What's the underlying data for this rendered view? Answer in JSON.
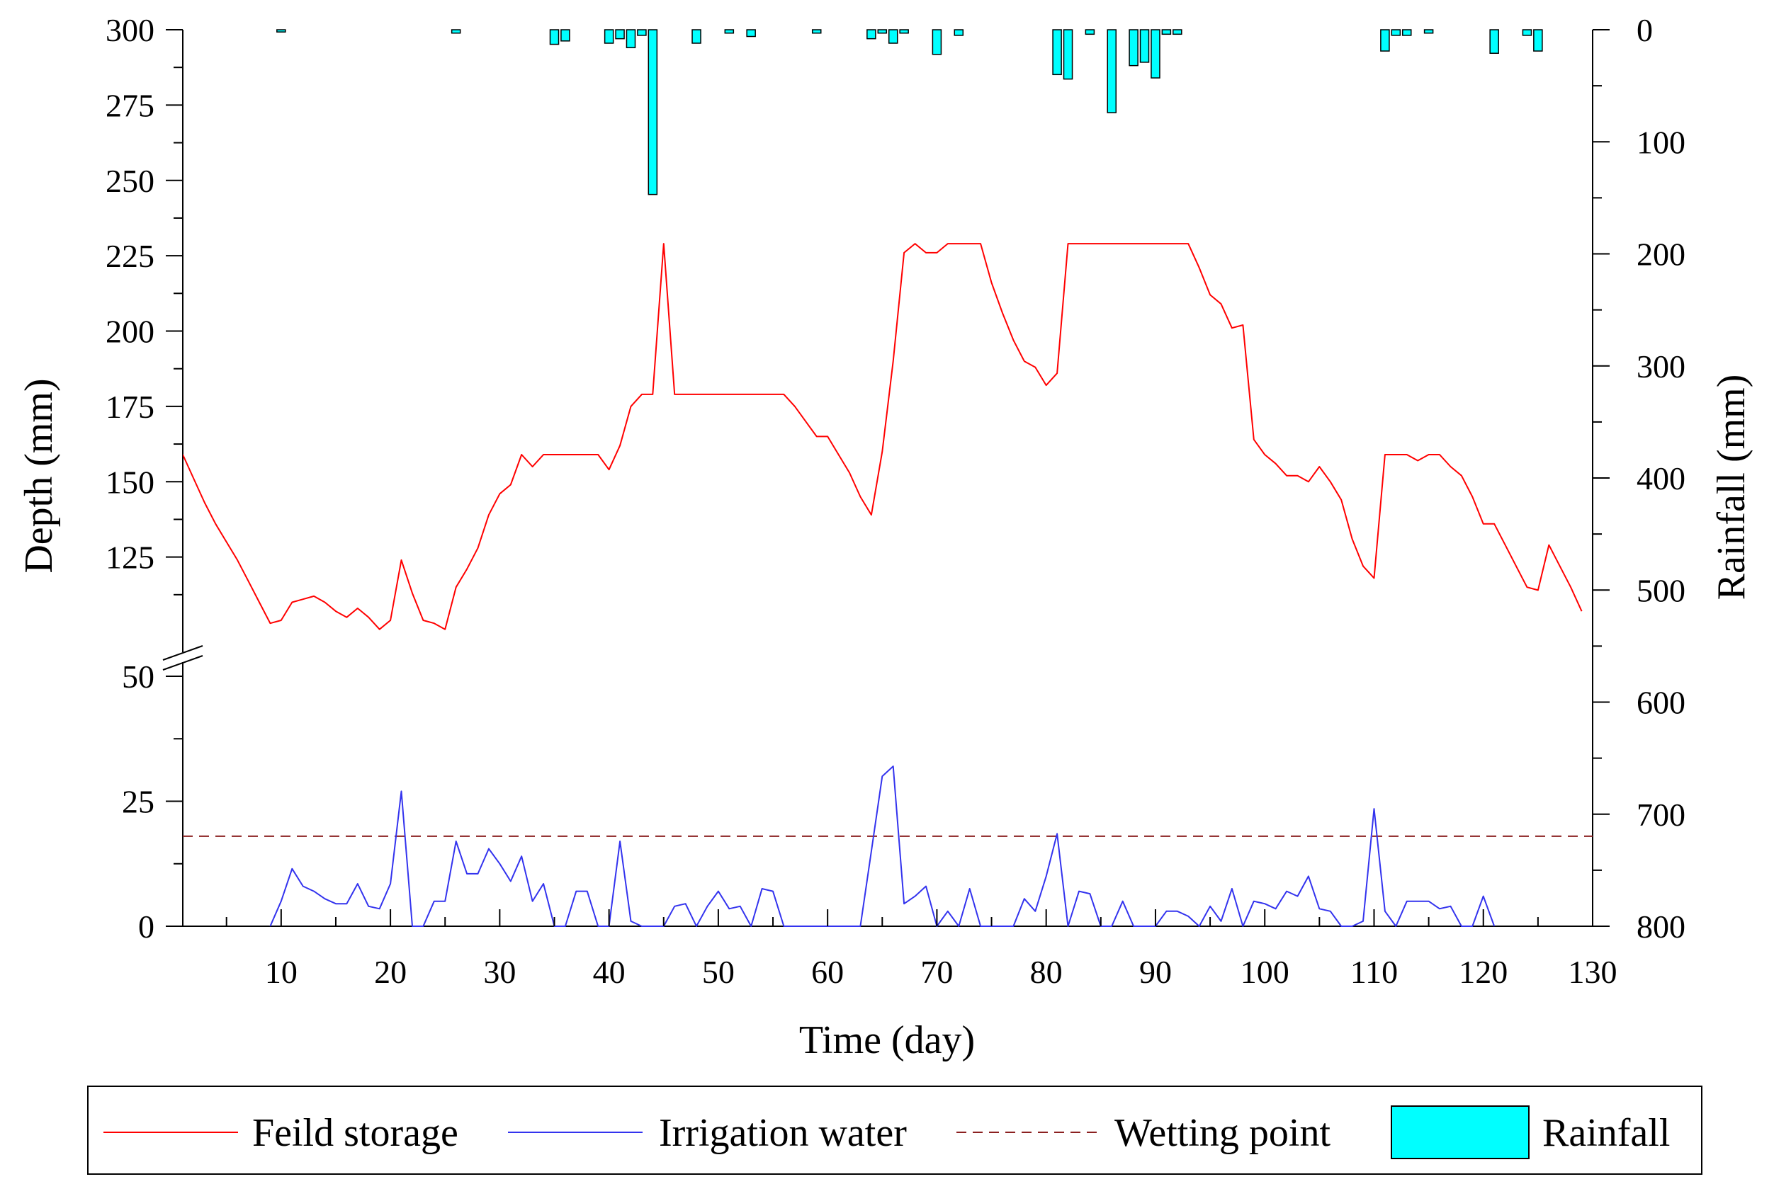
{
  "chart_data": {
    "type": "line",
    "xlabel": "Time (day)",
    "ylabel_left": "Depth (mm)",
    "ylabel_right": "Rainfall (mm)",
    "x_range": [
      1,
      130
    ],
    "left_axis_break": true,
    "left_axis_segments": [
      {
        "range": [
          0,
          50
        ],
        "ticks": [
          0,
          25,
          50
        ],
        "minor_step": 12.5
      },
      {
        "range": [
          100,
          300
        ],
        "ticks": [
          125,
          150,
          175,
          200,
          225,
          250,
          275,
          300
        ],
        "minor_step": 12.5
      }
    ],
    "right_axis": {
      "range": [
        0,
        800
      ],
      "inverted": true,
      "ticks": [
        0,
        100,
        200,
        300,
        400,
        500,
        600,
        700,
        800
      ],
      "minor_step": 50
    },
    "x_ticks": [
      10,
      20,
      30,
      40,
      50,
      60,
      70,
      80,
      90,
      100,
      110,
      120,
      130
    ],
    "x_minor_step": 5,
    "legend": {
      "position": "bottom",
      "frame": true
    },
    "series": [
      {
        "name": "Feild storage",
        "kind": "line",
        "axis": "left",
        "color": "#ff0000",
        "style": "solid",
        "x": [
          1,
          2,
          3,
          4,
          5,
          6,
          7,
          8,
          9,
          10,
          11,
          12,
          13,
          14,
          15,
          16,
          17,
          18,
          19,
          20,
          21,
          22,
          23,
          24,
          25,
          26,
          27,
          28,
          29,
          30,
          31,
          32,
          33,
          34,
          35,
          36,
          37,
          38,
          39,
          40,
          41,
          42,
          43,
          44,
          45,
          46,
          47,
          48,
          49,
          50,
          51,
          52,
          53,
          54,
          55,
          56,
          57,
          58,
          59,
          60,
          61,
          62,
          63,
          64,
          65,
          66,
          67,
          68,
          69,
          70,
          71,
          72,
          73,
          74,
          75,
          76,
          77,
          78,
          79,
          80,
          81,
          82,
          83,
          84,
          85,
          86,
          87,
          88,
          89,
          90,
          91,
          92,
          93,
          94,
          95,
          96,
          97,
          98,
          99,
          100,
          101,
          102,
          103,
          104,
          105,
          106,
          107,
          108,
          109,
          110,
          111,
          112,
          113,
          114,
          115,
          116,
          117,
          118,
          119,
          120,
          121,
          122,
          123,
          124,
          125,
          126,
          127,
          128,
          129
        ],
        "values": [
          159,
          151,
          143,
          136,
          130,
          124,
          117,
          110,
          103,
          104,
          110,
          111,
          112,
          110,
          107,
          105,
          108,
          105,
          101,
          104,
          124,
          113,
          104,
          103,
          101,
          115,
          121,
          128,
          139,
          146,
          149,
          159,
          155,
          159,
          159,
          159,
          159,
          159,
          159,
          154,
          162,
          175,
          179,
          179,
          229,
          179,
          179,
          179,
          179,
          179,
          179,
          179,
          179,
          179,
          179,
          179,
          175,
          170,
          165,
          165,
          159,
          153,
          145,
          139,
          160,
          190,
          226,
          229,
          226,
          226,
          229,
          229,
          229,
          229,
          216,
          206,
          197,
          190,
          188,
          182,
          186,
          229,
          229,
          229,
          229,
          229,
          229,
          229,
          229,
          229,
          229,
          229,
          229,
          221,
          212,
          209,
          201,
          202,
          164,
          159,
          156,
          152,
          152,
          150,
          155,
          150,
          144,
          131,
          122,
          118,
          159,
          159,
          159,
          157,
          159,
          159,
          155,
          152,
          145,
          136,
          136,
          129,
          122,
          115,
          114,
          129,
          122,
          115,
          107
        ]
      },
      {
        "name": "Irrigation water",
        "kind": "line",
        "axis": "left",
        "color": "#3333ee",
        "style": "solid",
        "x": [
          9,
          10,
          11,
          12,
          13,
          14,
          15,
          16,
          17,
          18,
          19,
          20,
          21,
          22,
          23,
          24,
          25,
          26,
          27,
          28,
          29,
          30,
          31,
          32,
          33,
          34,
          35,
          36,
          37,
          38,
          39,
          40,
          41,
          42,
          43,
          44,
          45,
          46,
          47,
          48,
          49,
          50,
          51,
          52,
          53,
          54,
          55,
          56,
          57,
          58,
          59,
          60,
          61,
          62,
          63,
          64,
          65,
          66,
          67,
          68,
          69,
          70,
          71,
          72,
          73,
          74,
          75,
          76,
          77,
          78,
          79,
          80,
          81,
          82,
          83,
          84,
          85,
          86,
          87,
          88,
          89,
          90,
          91,
          92,
          93,
          94,
          95,
          96,
          97,
          98,
          99,
          100,
          101,
          102,
          103,
          104,
          105,
          106,
          107,
          108,
          109,
          110,
          111,
          112,
          113,
          114,
          115,
          116,
          117,
          118,
          119,
          120,
          121
        ],
        "values": [
          0,
          5,
          11.5,
          8,
          7,
          5.5,
          4.5,
          4.5,
          8.5,
          4,
          3.5,
          8.5,
          27,
          0,
          0,
          5,
          5,
          17,
          10.5,
          10.5,
          15.5,
          12.5,
          9,
          14,
          5,
          8.5,
          0,
          0,
          7,
          7,
          0,
          0,
          17,
          1,
          0,
          0,
          0,
          4,
          4.5,
          0,
          4,
          7,
          3.5,
          4,
          0,
          7.5,
          7,
          0,
          0,
          0,
          0,
          0,
          0,
          0,
          0,
          15,
          30,
          32,
          4.5,
          6,
          8,
          0,
          3,
          0,
          7.5,
          0,
          0,
          0,
          0,
          5.5,
          3,
          10,
          18.5,
          0,
          7,
          6.5,
          0,
          0,
          5,
          0,
          0,
          0,
          3,
          3,
          2,
          0,
          4,
          1,
          7.5,
          0,
          5,
          4.5,
          3.5,
          7,
          6,
          10,
          3.5,
          3,
          0,
          0,
          1,
          23.5,
          3,
          0,
          5,
          5,
          5,
          3.5,
          4,
          0,
          0,
          6,
          0
        ]
      },
      {
        "name": "Wetting point",
        "kind": "line",
        "axis": "left",
        "color": "#8b2020",
        "style": "dashed",
        "x": [
          1,
          130
        ],
        "values": [
          18,
          18
        ]
      },
      {
        "name": "Rainfall",
        "kind": "bar",
        "axis": "right",
        "color": "#00ffff",
        "x": [
          10,
          26,
          35,
          36,
          40,
          41,
          42,
          43,
          44,
          48,
          51,
          53,
          59,
          64,
          65,
          66,
          67,
          70,
          72,
          81,
          82,
          84,
          86,
          88,
          89,
          90,
          91,
          92,
          111,
          112,
          113,
          115,
          121,
          124,
          125
        ],
        "values": [
          2,
          3,
          13,
          10,
          12,
          8,
          16,
          5,
          147,
          12,
          3,
          6,
          3,
          8,
          3,
          12,
          3,
          22,
          5,
          40,
          44,
          4,
          74,
          32,
          29,
          43,
          4,
          4,
          19,
          5,
          5,
          3,
          21,
          5,
          19
        ]
      }
    ]
  }
}
